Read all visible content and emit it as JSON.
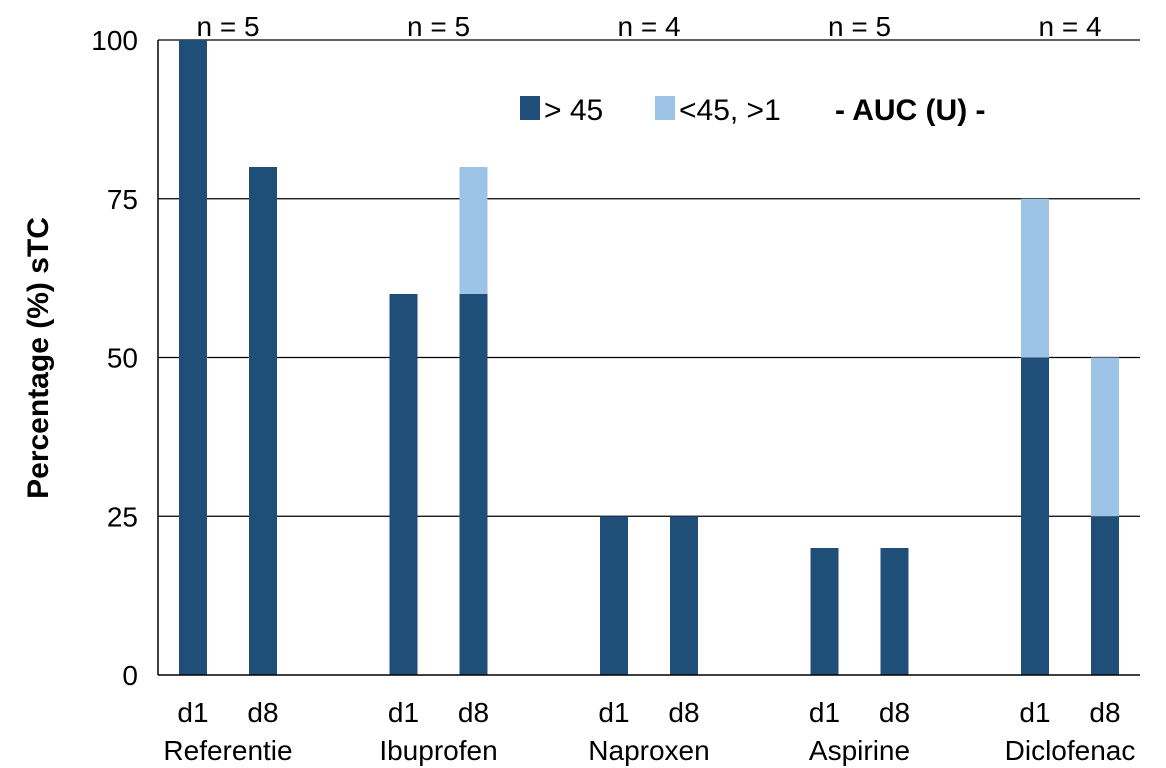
{
  "chart_data": {
    "type": "bar",
    "stacked": true,
    "ylabel": "Percentage (%)  sTC",
    "ylim": [
      0,
      100
    ],
    "yticks": [
      0,
      25,
      50,
      75,
      100
    ],
    "grid": true,
    "legend_placement": "top-right",
    "legend_note": "- AUC (U) -",
    "groups": [
      {
        "name": "Referentie",
        "n_label": "n = 5",
        "days": [
          "d1",
          "d8"
        ]
      },
      {
        "name": "Ibuprofen",
        "n_label": "n = 5",
        "days": [
          "d1",
          "d8"
        ]
      },
      {
        "name": "Naproxen",
        "n_label": "n = 4",
        "days": [
          "d1",
          "d8"
        ]
      },
      {
        "name": "Aspirine",
        "n_label": "n = 5",
        "days": [
          "d1",
          "d8"
        ]
      },
      {
        "name": "Diclofenac",
        "n_label": "n = 4",
        "days": [
          "d1",
          "d8"
        ]
      }
    ],
    "series": [
      {
        "name": "> 45",
        "color": "#1f4e79",
        "values": [
          100,
          80,
          60,
          60,
          25,
          25,
          20,
          20,
          50,
          25
        ]
      },
      {
        "name": "<45, >1",
        "color": "#9dc3e6",
        "values": [
          0,
          0,
          0,
          20,
          0,
          0,
          0,
          0,
          25,
          25
        ]
      }
    ]
  }
}
